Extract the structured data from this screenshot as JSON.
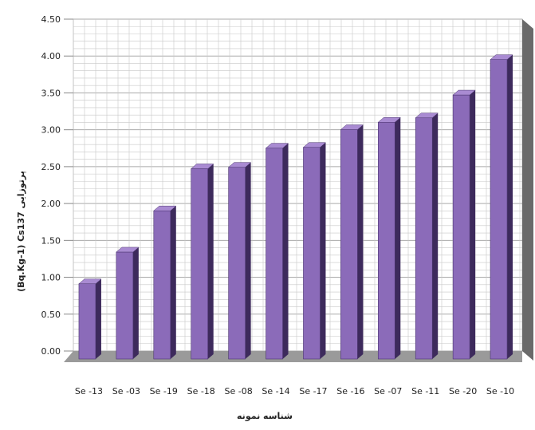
{
  "chart_data": {
    "type": "bar",
    "title": "",
    "xlabel": "شناسه نمونه",
    "ylabel": "(Bq.Kg-1) Cs137 پرتوزایی",
    "ylim": [
      0,
      4.5
    ],
    "yticks": [
      "0.00",
      "0.50",
      "1.00",
      "1.50",
      "2.00",
      "2.50",
      "3.00",
      "3.50",
      "4.00",
      "4.50"
    ],
    "categories": [
      "Se -13",
      "Se -03",
      "Se -19",
      "Se -18",
      "Se -08",
      "Se -14",
      "Se -17",
      "Se -16",
      "Se -07",
      "Se -11",
      "Se -20",
      "Se -10"
    ],
    "values": [
      1.02,
      1.45,
      2.01,
      2.58,
      2.6,
      2.86,
      2.87,
      3.11,
      3.21,
      3.27,
      3.58,
      4.06
    ],
    "grid": true,
    "colors": {
      "bar_front": "#8b6bb9",
      "bar_side": "#3d2a5c",
      "bar_top": "#a98bd2",
      "floor": "#9a9a9a",
      "grid": "#c8c8c8",
      "wall": "#ffffff"
    }
  }
}
